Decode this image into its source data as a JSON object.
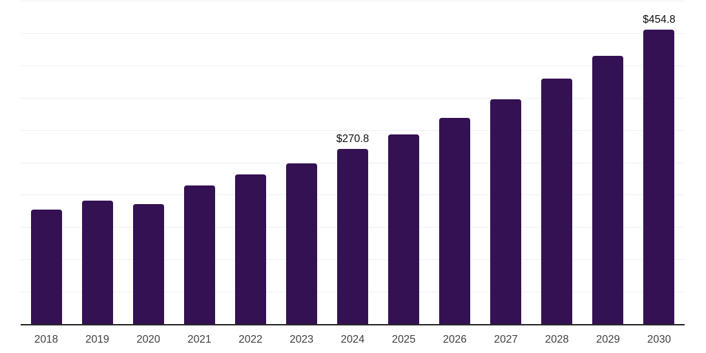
{
  "chart_data": {
    "type": "bar",
    "title": "",
    "xlabel": "",
    "ylabel": "",
    "legend": "none",
    "grid": "horizontal",
    "categories": [
      "2018",
      "2019",
      "2020",
      "2021",
      "2022",
      "2023",
      "2024",
      "2025",
      "2026",
      "2027",
      "2028",
      "2029",
      "2030"
    ],
    "values": [
      177.0,
      190.4,
      185.1,
      214.4,
      230.9,
      248.4,
      270.8,
      293.6,
      319.1,
      347.9,
      379.8,
      414.9,
      454.8
    ],
    "data_labels": {
      "2024": "$270.8",
      "2030": "$454.8"
    },
    "ylim": [
      0,
      500
    ],
    "gridline_step": 50,
    "colors": {
      "bar": "#341153",
      "gridline": "#f0f0f0",
      "axis_line": "#262626",
      "tick_label": "#3f3f3f",
      "data_label": "#0c0c0c",
      "background": "#ffffff"
    }
  }
}
